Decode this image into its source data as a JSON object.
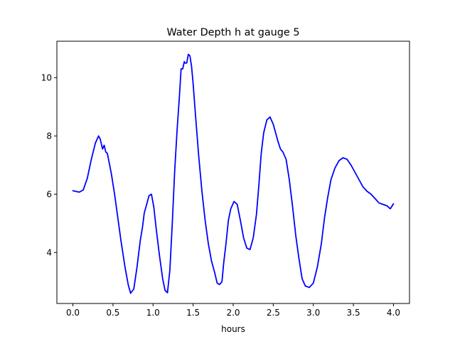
{
  "chart_data": {
    "type": "line",
    "title": "Water Depth h at gauge 5",
    "xlabel": "hours",
    "ylabel": "",
    "xlim": [
      -0.2,
      4.2
    ],
    "ylim": [
      2.25,
      11.25
    ],
    "xticks": [
      0.0,
      0.5,
      1.0,
      1.5,
      2.0,
      2.5,
      3.0,
      3.5,
      4.0
    ],
    "xtick_labels": [
      "0.0",
      "0.5",
      "1.0",
      "1.5",
      "2.0",
      "2.5",
      "3.0",
      "3.5",
      "4.0"
    ],
    "yticks": [
      4,
      6,
      8,
      10
    ],
    "ytick_labels": [
      "4",
      "6",
      "8",
      "10"
    ],
    "grid": false,
    "series": [
      {
        "color": "#0000ff",
        "x": [
          0.0,
          0.08,
          0.13,
          0.18,
          0.23,
          0.28,
          0.32,
          0.34,
          0.37,
          0.39,
          0.41,
          0.43,
          0.48,
          0.52,
          0.56,
          0.6,
          0.65,
          0.69,
          0.72,
          0.76,
          0.8,
          0.84,
          0.87,
          0.89,
          0.92,
          0.95,
          0.98,
          1.01,
          1.04,
          1.08,
          1.12,
          1.15,
          1.18,
          1.21,
          1.24,
          1.27,
          1.3,
          1.33,
          1.35,
          1.37,
          1.39,
          1.4,
          1.42,
          1.44,
          1.46,
          1.48,
          1.5,
          1.53,
          1.57,
          1.61,
          1.65,
          1.69,
          1.73,
          1.77,
          1.8,
          1.83,
          1.86,
          1.88,
          1.91,
          1.94,
          1.97,
          2.01,
          2.05,
          2.09,
          2.13,
          2.17,
          2.21,
          2.25,
          2.29,
          2.32,
          2.35,
          2.38,
          2.42,
          2.46,
          2.5,
          2.53,
          2.56,
          2.59,
          2.62,
          2.66,
          2.7,
          2.74,
          2.78,
          2.82,
          2.86,
          2.9,
          2.95,
          3.0,
          3.05,
          3.1,
          3.14,
          3.18,
          3.22,
          3.27,
          3.32,
          3.37,
          3.42,
          3.47,
          3.52,
          3.57,
          3.62,
          3.67,
          3.72,
          3.77,
          3.82,
          3.87,
          3.92,
          3.96,
          4.0
        ],
        "y": [
          6.12,
          6.07,
          6.15,
          6.55,
          7.2,
          7.75,
          8.0,
          7.9,
          7.55,
          7.68,
          7.45,
          7.4,
          6.7,
          6.0,
          5.2,
          4.4,
          3.5,
          2.9,
          2.6,
          2.75,
          3.5,
          4.4,
          4.9,
          5.35,
          5.65,
          5.95,
          6.0,
          5.55,
          4.8,
          3.9,
          3.1,
          2.7,
          2.62,
          3.4,
          5.0,
          6.8,
          8.2,
          9.4,
          10.3,
          10.3,
          10.55,
          10.5,
          10.5,
          10.8,
          10.75,
          10.4,
          9.8,
          8.7,
          7.3,
          6.1,
          5.1,
          4.3,
          3.7,
          3.3,
          2.95,
          2.9,
          3.0,
          3.6,
          4.3,
          5.1,
          5.5,
          5.75,
          5.65,
          5.1,
          4.5,
          4.15,
          4.1,
          4.5,
          5.3,
          6.3,
          7.4,
          8.1,
          8.55,
          8.65,
          8.4,
          8.1,
          7.8,
          7.55,
          7.45,
          7.2,
          6.5,
          5.6,
          4.6,
          3.8,
          3.1,
          2.85,
          2.8,
          2.95,
          3.5,
          4.3,
          5.2,
          5.9,
          6.5,
          6.9,
          7.15,
          7.25,
          7.2,
          7.0,
          6.75,
          6.5,
          6.25,
          6.1,
          6.0,
          5.85,
          5.7,
          5.65,
          5.6,
          5.5,
          5.67
        ]
      }
    ]
  }
}
